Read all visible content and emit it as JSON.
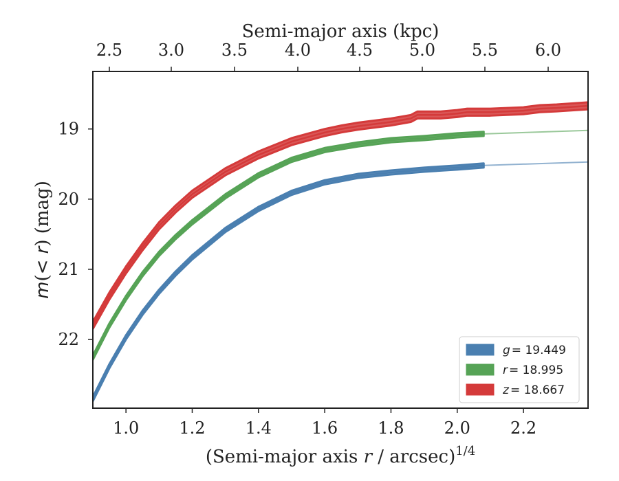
{
  "chart_data": {
    "type": "line",
    "xlabel_main": "(Semi-major axis ",
    "xlabel_r": "r",
    "xlabel_rest": " / arcsec)",
    "xlabel_exp": "1/4",
    "xlabel_top": "Semi-major axis (kpc)",
    "ylabel_m": "m",
    "ylabel_open": "(",
    "ylabel_lt": "< ",
    "ylabel_r": "r",
    "ylabel_close": ") (mag)",
    "xlim": [
      0.9,
      2.395
    ],
    "ylim": [
      22.98,
      18.18
    ],
    "y_inverted": true,
    "x_ticks": [
      "1.0",
      "1.2",
      "1.4",
      "1.6",
      "1.8",
      "2.0",
      "2.2"
    ],
    "y_ticks": [
      "19",
      "20",
      "21",
      "22"
    ],
    "x_top_ticks": [
      "2.5",
      "3.0",
      "3.5",
      "4.0",
      "4.5",
      "5.0",
      "5.5",
      "6.0"
    ],
    "legend_position": "lower-right",
    "series": [
      {
        "name": "g",
        "legend_value": "= 19.449",
        "color": "#4a7fb0",
        "band_halfwidth": 0.03,
        "x": [
          0.9,
          0.95,
          1.0,
          1.05,
          1.1,
          1.15,
          1.2,
          1.3,
          1.4,
          1.5,
          1.6,
          1.7,
          1.8,
          1.9,
          2.0,
          2.08
        ],
        "y": [
          22.85,
          22.38,
          21.97,
          21.62,
          21.32,
          21.06,
          20.83,
          20.44,
          20.14,
          19.91,
          19.76,
          19.67,
          19.62,
          19.58,
          19.55,
          19.52
        ]
      },
      {
        "name": "r",
        "legend_value": "= 18.995",
        "color": "#56a356",
        "band_halfwidth": 0.03,
        "x": [
          0.9,
          0.95,
          1.0,
          1.05,
          1.1,
          1.15,
          1.2,
          1.3,
          1.4,
          1.5,
          1.6,
          1.7,
          1.8,
          1.9,
          2.0,
          2.08
        ],
        "y": [
          22.26,
          21.8,
          21.41,
          21.07,
          20.78,
          20.54,
          20.33,
          19.96,
          19.66,
          19.44,
          19.3,
          19.22,
          19.16,
          19.13,
          19.09,
          19.07
        ]
      },
      {
        "name": "z",
        "legend_value": "= 18.667",
        "color": "#d43a3a",
        "band_halfwidth": 0.05,
        "x": [
          0.9,
          0.95,
          1.0,
          1.05,
          1.1,
          1.15,
          1.2,
          1.3,
          1.4,
          1.5,
          1.6,
          1.65,
          1.7,
          1.8,
          1.86,
          1.88,
          1.95,
          2.0,
          2.03,
          2.1,
          2.2,
          2.25,
          2.3,
          2.395
        ],
        "y": [
          21.8,
          21.38,
          21.01,
          20.68,
          20.38,
          20.14,
          19.93,
          19.61,
          19.37,
          19.18,
          19.05,
          19.0,
          18.96,
          18.9,
          18.85,
          18.8,
          18.8,
          18.78,
          18.76,
          18.76,
          18.74,
          18.71,
          18.7,
          18.67
        ]
      }
    ],
    "extrapolations": [
      {
        "of": "g",
        "x": [
          2.08,
          2.395
        ],
        "y": [
          19.52,
          19.47
        ]
      },
      {
        "of": "r",
        "x": [
          2.08,
          2.395
        ],
        "y": [
          19.07,
          19.02
        ]
      }
    ]
  }
}
